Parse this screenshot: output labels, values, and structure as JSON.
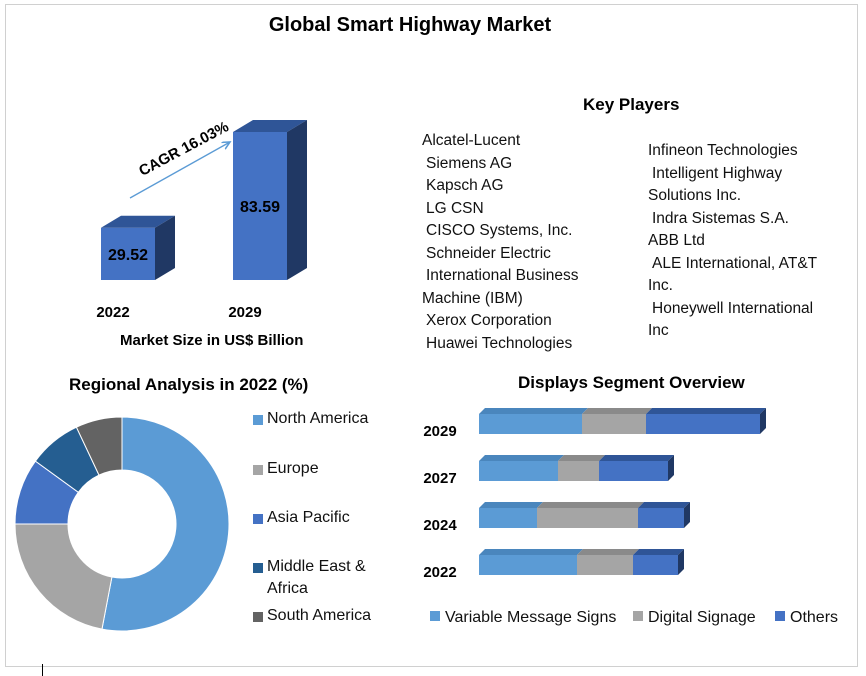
{
  "title": "Global Smart Highway Market",
  "colors": {
    "blue": "#4472C4",
    "light_blue": "#5B9BD5",
    "gray": "#A5A5A5",
    "dark_blue": "#255E91",
    "dark_gray": "#636363",
    "arrow": "#5B9BD5"
  },
  "key_players": {
    "title": "Key Players",
    "left_list": [
      "Alcatel-Lucent",
      "Siemens AG",
      "Kapsch AG",
      "LG CSN",
      "CISCO Systems, Inc.",
      "Schneider Electric",
      "International Business",
      "Machine (IBM)",
      "Xerox Corporation",
      "Huawei Technologies"
    ],
    "right_list": [
      "Infineon Technologies",
      "Intelligent Highway",
      "Solutions Inc.",
      "Indra Sistemas S.A.",
      "ABB Ltd",
      "ALE International, AT&T",
      "Inc.",
      "Honeywell International",
      "Inc"
    ]
  },
  "chart_data": [
    {
      "type": "bar",
      "categories": [
        "2022",
        "2029"
      ],
      "values": [
        29.52,
        83.59
      ],
      "title": "",
      "xlabel": "Market Size in US$ Billion",
      "ylabel": "",
      "annotation": "CAGR 16.03%",
      "ylim": [
        0,
        90
      ]
    },
    {
      "type": "pie",
      "title": "Regional Analysis in 2022 (%)",
      "categories": [
        "North America",
        "Europe",
        "Asia Pacific",
        "Middle East & Africa",
        "South America"
      ],
      "values": [
        53,
        22,
        10,
        8,
        7
      ],
      "legend_position": "right"
    },
    {
      "type": "bar",
      "orientation": "horizontal",
      "stacked": true,
      "title": "Displays Segment Overview",
      "categories": [
        "2029",
        "2027",
        "2024",
        "2022"
      ],
      "series": [
        {
          "name": "Variable Message Signs",
          "values": [
            103,
            79,
            58,
            98
          ]
        },
        {
          "name": "Digital Signage",
          "values": [
            64,
            41,
            101,
            56
          ]
        },
        {
          "name": "Others",
          "values": [
            114,
            69,
            46,
            45
          ]
        }
      ],
      "legend_position": "bottom"
    }
  ],
  "market_chart": {
    "year_labels": [
      "2022",
      "2029"
    ],
    "value_labels": [
      "29.52",
      "83.59"
    ]
  },
  "regional_legend": [
    "North America",
    "Europe",
    "Asia Pacific",
    "Middle East &",
    "Africa",
    "South America"
  ],
  "segment_legend": [
    "Variable Message Signs",
    "Digital Signage",
    "Others"
  ]
}
